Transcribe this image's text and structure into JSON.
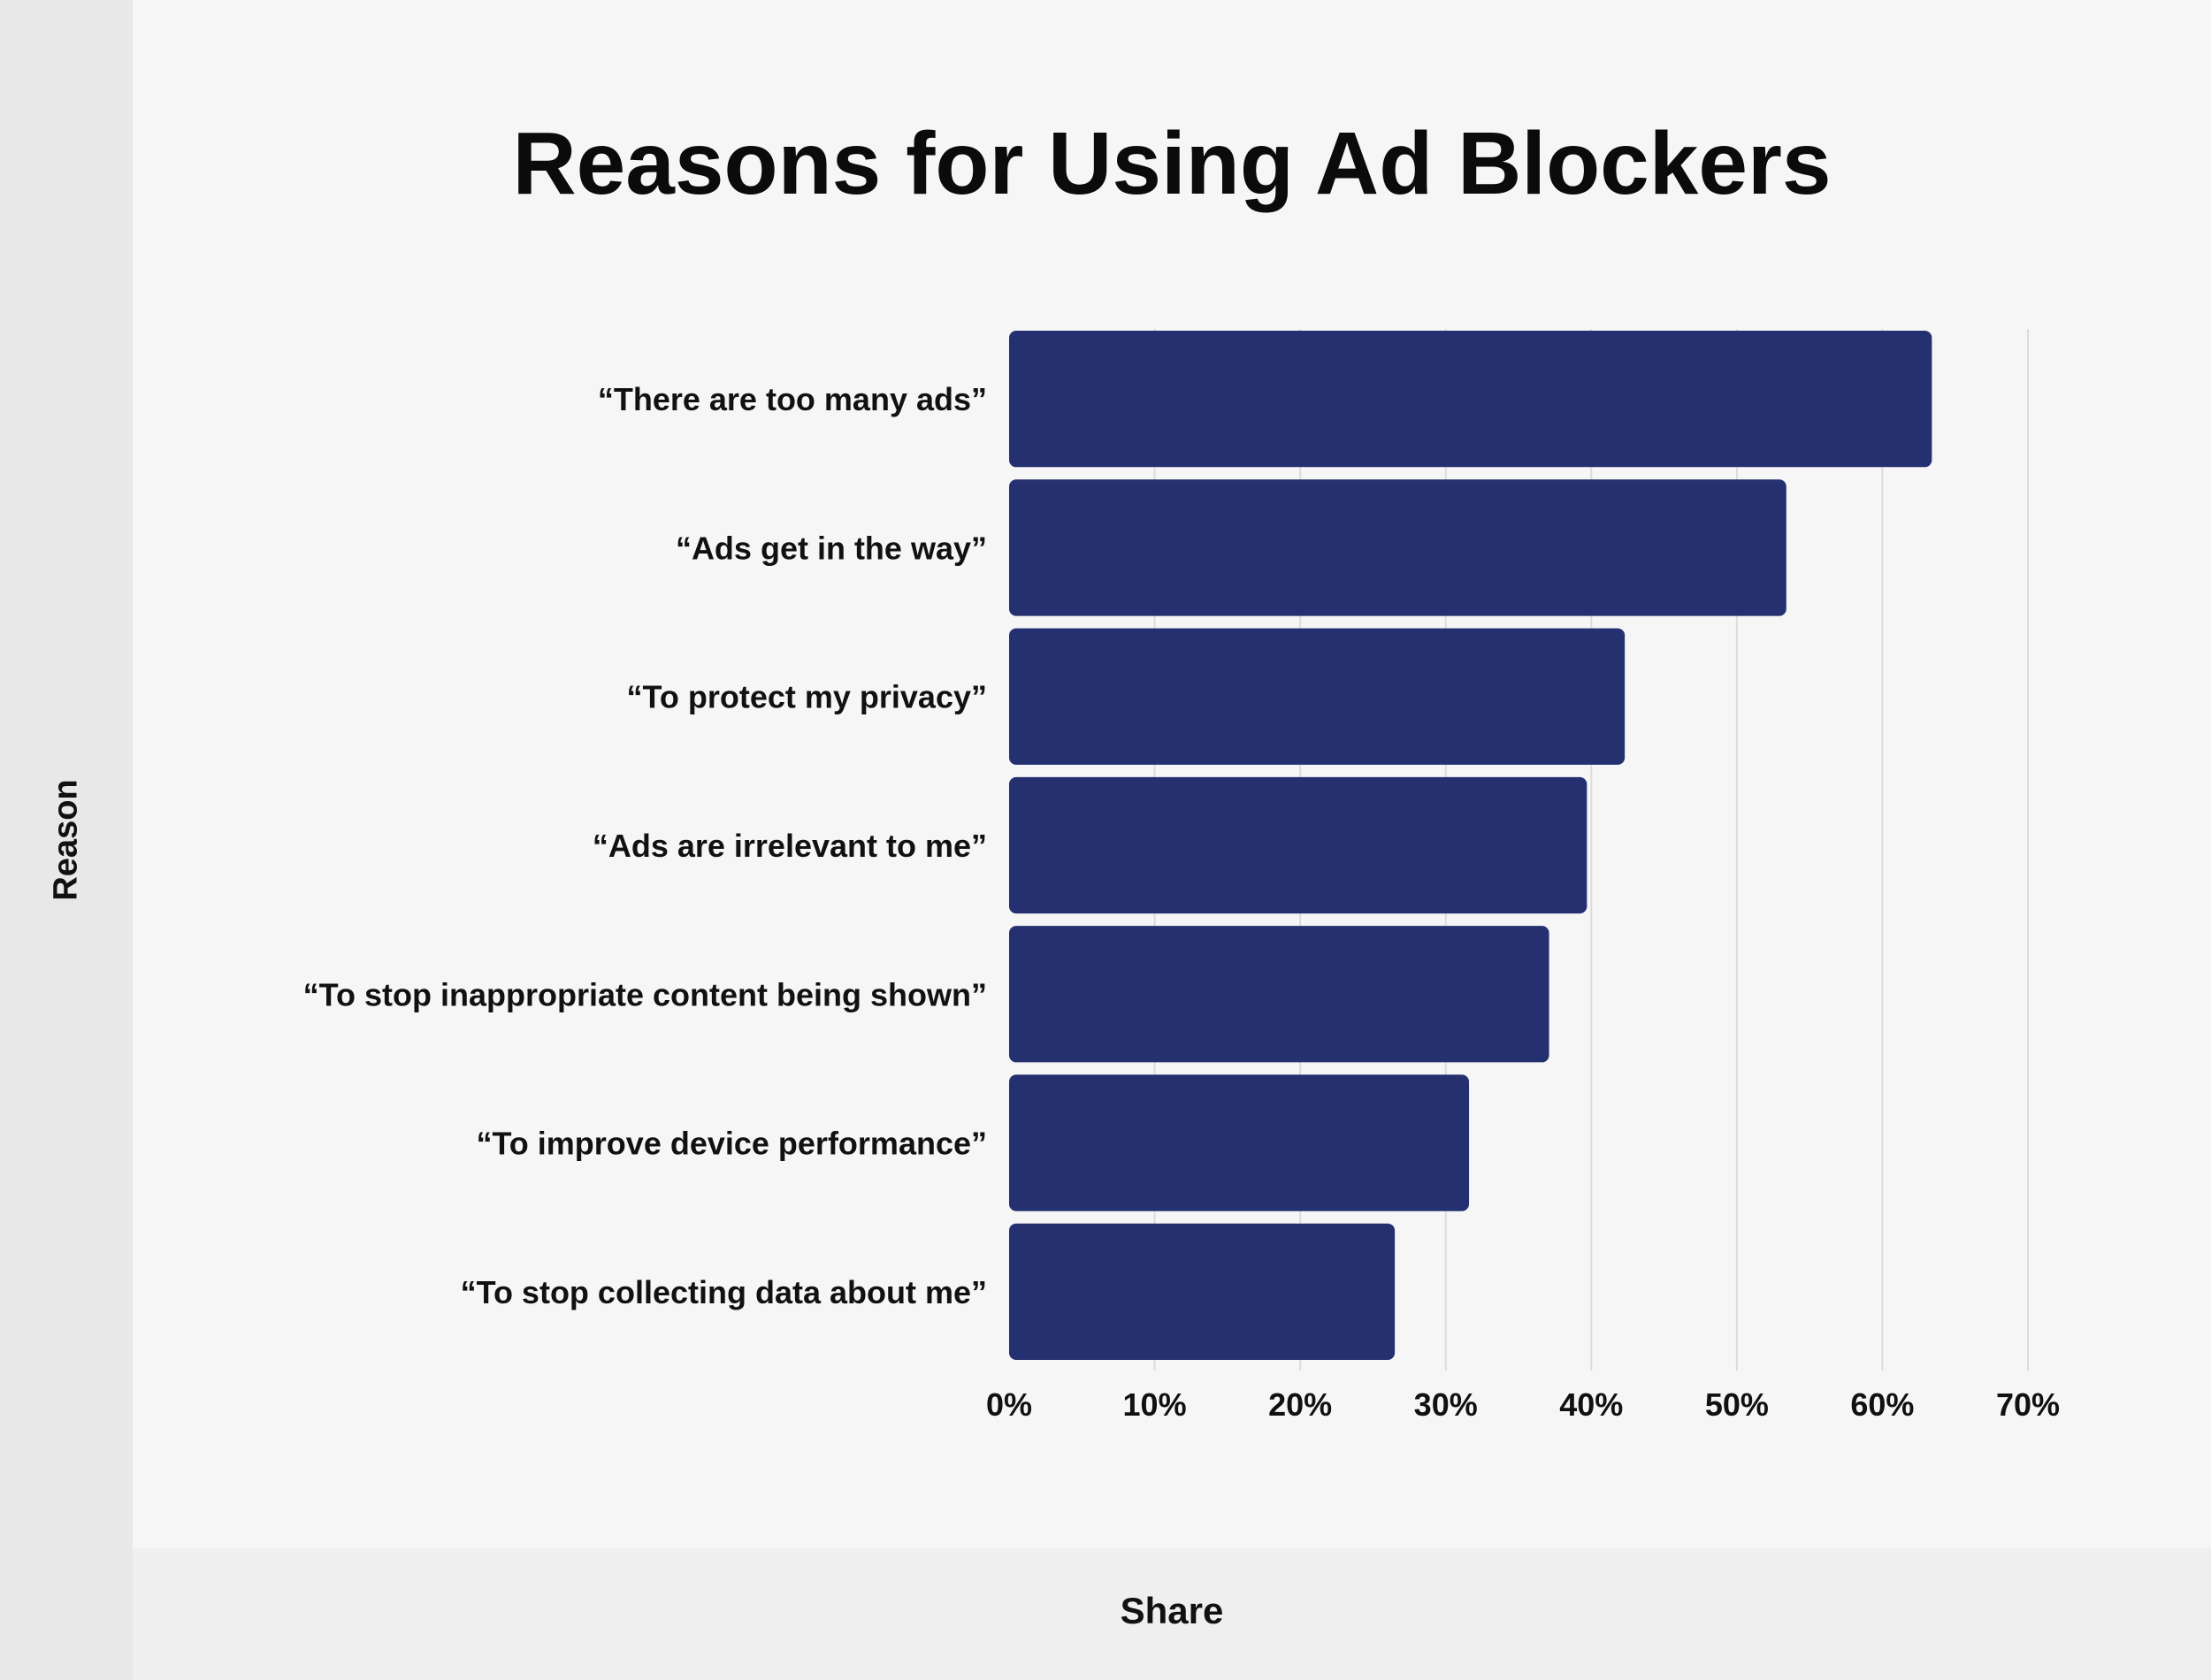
{
  "chart_data": {
    "type": "bar",
    "orientation": "horizontal",
    "title": "Reasons for Using Ad Blockers",
    "xlabel": "Share",
    "ylabel": "Reason",
    "categories": [
      "“There are too many ads”",
      "“Ads get in the way”",
      "“To protect my privacy”",
      "“Ads are irrelevant to me”",
      "“To stop inappropriate content being shown”",
      "“To improve device performance”",
      "“To stop collecting data about me”"
    ],
    "values": [
      63.4,
      53.4,
      42.3,
      39.7,
      37.1,
      31.6,
      26.5
    ],
    "xlim": [
      0,
      70
    ],
    "xticks": [
      "0%",
      "10%",
      "20%",
      "30%",
      "40%",
      "50%",
      "60%",
      "70%"
    ],
    "bar_color": "#253071",
    "grid": true
  }
}
